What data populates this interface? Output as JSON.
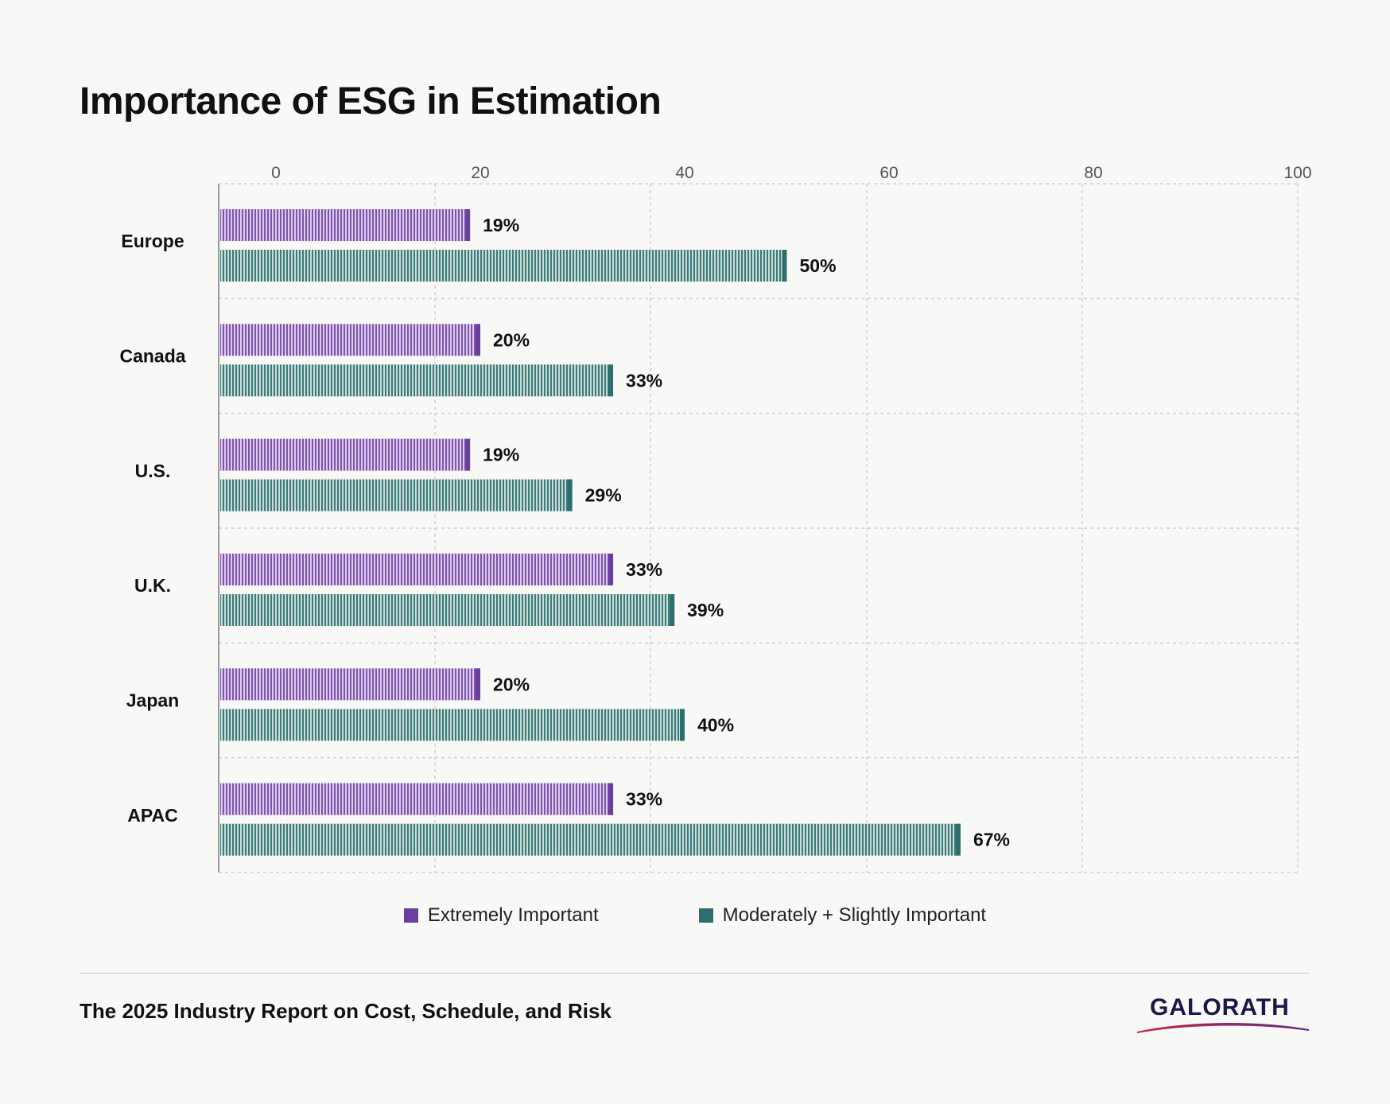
{
  "chart_data": {
    "type": "bar",
    "orientation": "horizontal",
    "title": "Importance of ESG in Estimation",
    "categories": [
      "Europe",
      "Canada",
      "U.S.",
      "U.K.",
      "Japan",
      "APAC"
    ],
    "series": [
      {
        "name": "Extremely Important",
        "color": "#6b3fa0",
        "values": [
          19,
          20,
          19,
          33,
          20,
          33
        ],
        "labels": [
          "19%",
          "20%",
          "19%",
          "33%",
          "20%",
          "33%"
        ]
      },
      {
        "name": "Moderately + Slightly Important",
        "color": "#2e6e6e",
        "values": [
          50,
          33,
          29,
          39,
          40,
          67
        ],
        "labels": [
          "50%",
          "33%",
          "29%",
          "39%",
          "40%",
          "67%"
        ]
      }
    ],
    "xlim": [
      0,
      100
    ],
    "xticks": [
      0,
      20,
      40,
      60,
      80,
      100
    ],
    "xtick_labels": [
      "0",
      "20",
      "40",
      "60",
      "80",
      "100"
    ],
    "grid": true,
    "legend_position": "bottom-center"
  },
  "footer": {
    "report_title": "The 2025 Industry Report on Cost, Schedule, and Risk",
    "logo_text": "GALORATH"
  }
}
